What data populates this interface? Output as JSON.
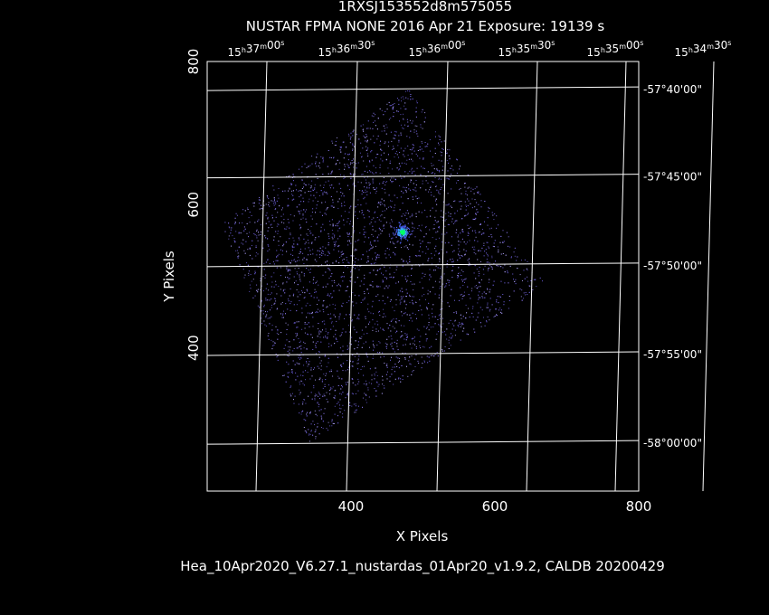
{
  "header": {
    "title": "1RXSJ153552d8m575055",
    "subtitle": "NUSTAR FPMA NONE   2016 Apr 21    Exposure: 19139 s"
  },
  "footer": {
    "text": "Hea_10Apr2020_V6.27.1_nustardas_01Apr20_v1.9.2, CALDB 20200429"
  },
  "chart_data": {
    "type": "scatter",
    "title": "1RXSJ153552d8m575055",
    "subtitle": "NUSTAR FPMA NONE   2016 Apr 21    Exposure: 19139 s",
    "xlabel": "X Pixels",
    "ylabel": "Y Pixels",
    "xlim": [
      200,
      800
    ],
    "ylim": [
      200,
      800
    ],
    "x_ticks": [
      400,
      600,
      800
    ],
    "y_ticks": [
      400,
      600,
      800
    ],
    "grid": true,
    "colors": {
      "background": "#000000",
      "frame": "#ffffff",
      "events": "#6a5acd",
      "source_core": "#00ff66"
    },
    "ra_grid_labels": [
      "15h37m00s",
      "15h36m30s",
      "15h36m00s",
      "15h35m30s",
      "15h35m00s",
      "15h34m30s"
    ],
    "dec_grid_labels": [
      "-57°40'00\"",
      "-57°45'00\"",
      "-57°50'00\"",
      "-57°55'00\"",
      "-58°00'00\""
    ],
    "ra_grid_x": [
      283,
      383,
      483,
      582,
      680,
      777
    ],
    "dec_grid_y": [
      762,
      640,
      516,
      392,
      268
    ],
    "event_field": {
      "corners": [
        [
          365,
          684
        ],
        [
          479,
          763
        ],
        [
          670,
          488
        ],
        [
          342,
          268
        ],
        [
          220,
          573
        ]
      ],
      "source": {
        "x": 471,
        "y": 562
      }
    }
  }
}
